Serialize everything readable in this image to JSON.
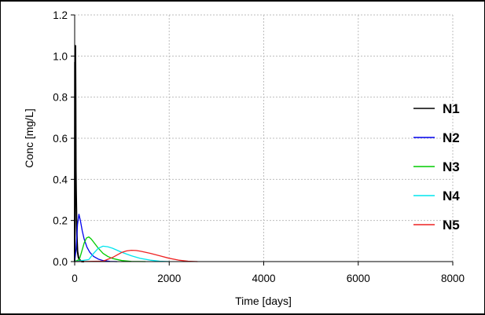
{
  "chart_data": {
    "type": "line",
    "title": "",
    "xlabel": "Time [days]",
    "ylabel": "Conc [mg/L]",
    "xlim": [
      0,
      8000
    ],
    "ylim": [
      0,
      1.2
    ],
    "xticks": [
      0,
      2000,
      4000,
      6000,
      8000
    ],
    "yticks": [
      0.0,
      0.2,
      0.4,
      0.6,
      0.8,
      1.0,
      1.2
    ],
    "xtick_labels": [
      "0",
      "2000",
      "4000",
      "6000",
      "8000"
    ],
    "ytick_labels": [
      "0.0",
      "0.2",
      "0.4",
      "0.6",
      "0.8",
      "1.0",
      "1.2"
    ],
    "grid": true,
    "legend_position": "right",
    "series": [
      {
        "name": "N1",
        "color": "#000000",
        "x": [
          0,
          5,
          10,
          15,
          20,
          25,
          30,
          40,
          50,
          60,
          80,
          100,
          150,
          200
        ],
        "y": [
          0,
          0.97,
          0.55,
          1.05,
          0.82,
          0.45,
          0.35,
          0.2,
          0.1,
          0.05,
          0.02,
          0.01,
          0.0,
          0.0
        ]
      },
      {
        "name": "N2",
        "color": "#0000ee",
        "x": [
          0,
          30,
          60,
          90,
          120,
          160,
          200,
          260,
          320,
          400,
          500,
          600,
          750,
          900
        ],
        "y": [
          0,
          0.06,
          0.18,
          0.23,
          0.2,
          0.15,
          0.11,
          0.07,
          0.045,
          0.025,
          0.012,
          0.005,
          0.001,
          0.0
        ]
      },
      {
        "name": "N3",
        "color": "#00cc00",
        "x": [
          0,
          100,
          150,
          200,
          250,
          300,
          350,
          400,
          500,
          600,
          700,
          800,
          1000,
          1200,
          1500
        ],
        "y": [
          0,
          0.01,
          0.05,
          0.09,
          0.115,
          0.12,
          0.11,
          0.095,
          0.065,
          0.04,
          0.025,
          0.015,
          0.005,
          0.001,
          0.0
        ]
      },
      {
        "name": "N4",
        "color": "#00e5ee",
        "x": [
          0,
          300,
          400,
          500,
          600,
          700,
          800,
          900,
          1000,
          1200,
          1400,
          1600,
          1800,
          2000
        ],
        "y": [
          0,
          0.01,
          0.04,
          0.065,
          0.075,
          0.072,
          0.065,
          0.055,
          0.045,
          0.028,
          0.015,
          0.007,
          0.002,
          0.0
        ]
      },
      {
        "name": "N5",
        "color": "#ee2222",
        "x": [
          0,
          600,
          800,
          1000,
          1100,
          1200,
          1300,
          1400,
          1600,
          1800,
          2000,
          2200,
          2400,
          2600
        ],
        "y": [
          0,
          0.002,
          0.02,
          0.045,
          0.052,
          0.055,
          0.054,
          0.05,
          0.04,
          0.028,
          0.016,
          0.007,
          0.002,
          0.0
        ]
      }
    ]
  }
}
